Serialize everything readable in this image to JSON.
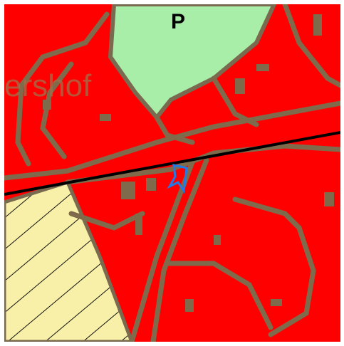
{
  "labels": {
    "zone": "P",
    "place": "ershof"
  }
}
